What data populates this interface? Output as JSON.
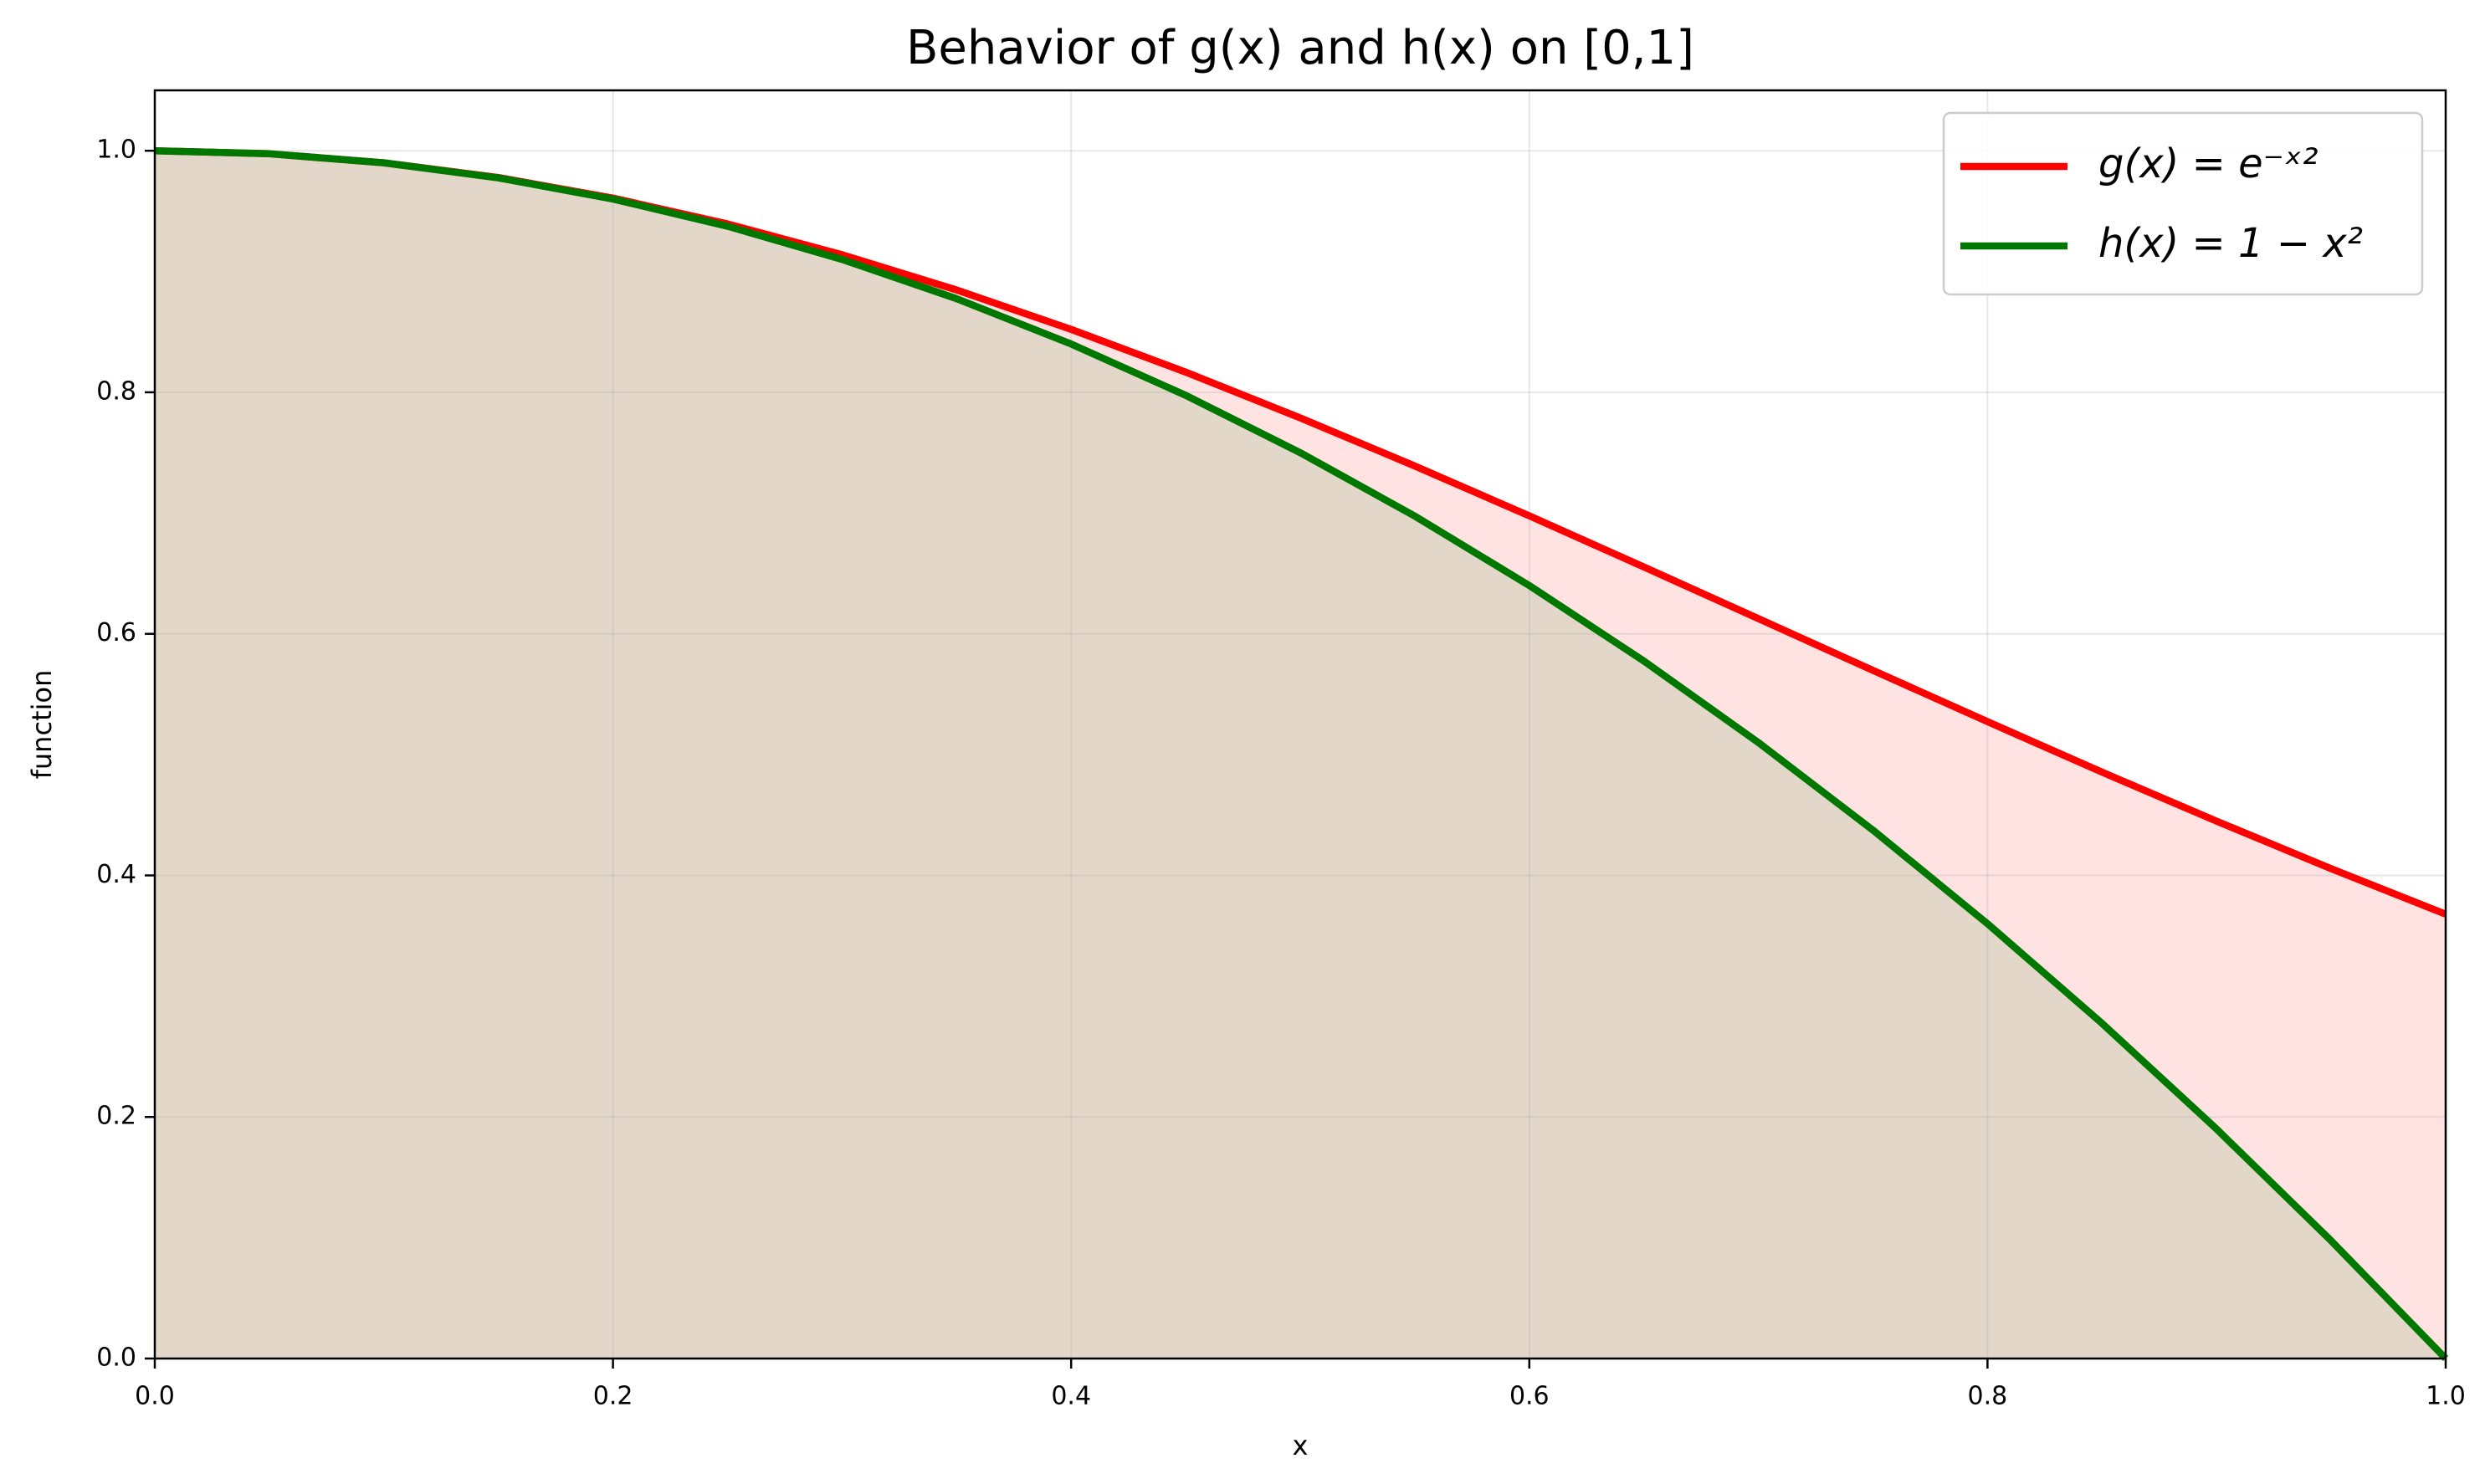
{
  "chart_data": {
    "type": "line",
    "title": "Behavior of g(x) and h(x) on [0,1]",
    "x_label": "x",
    "y_label": "function",
    "x": [
      0,
      0.05,
      0.1,
      0.15,
      0.2,
      0.25,
      0.3,
      0.35,
      0.4,
      0.45,
      0.5,
      0.55,
      0.6,
      0.65,
      0.7,
      0.75,
      0.8,
      0.85,
      0.9,
      0.95,
      1
    ],
    "series": [
      {
        "name": "g(x) = e⁻ˣ²",
        "color": "#ff0000",
        "fill": true,
        "values": [
          1,
          0.9975,
          0.99,
          0.9778,
          0.9608,
          0.9394,
          0.9139,
          0.8847,
          0.8521,
          0.8167,
          0.7788,
          0.739,
          0.6977,
          0.6554,
          0.6126,
          0.5698,
          0.5273,
          0.4855,
          0.4449,
          0.4056,
          0.3679
        ]
      },
      {
        "name": "h(x) = 1 − x²",
        "color": "#007800",
        "fill": true,
        "values": [
          1,
          0.9975,
          0.99,
          0.9775,
          0.96,
          0.9375,
          0.91,
          0.8775,
          0.84,
          0.7975,
          0.75,
          0.6975,
          0.64,
          0.5775,
          0.51,
          0.4375,
          0.36,
          0.2775,
          0.19,
          0.0975,
          0
        ]
      }
    ],
    "xlim": [
      0,
      1
    ],
    "ylim": [
      0,
      1.05
    ],
    "xticks": [
      {
        "value": 0,
        "label": "0.0"
      },
      0.2,
      0.4,
      0.6,
      0.8,
      {
        "value": 1,
        "label": "1.0"
      }
    ],
    "yticks": [
      {
        "value": 0,
        "label": "0.0"
      },
      0.2,
      0.4,
      0.6,
      0.8,
      {
        "value": 1,
        "label": "1.0"
      }
    ],
    "grid": true,
    "legend": "upper right"
  }
}
